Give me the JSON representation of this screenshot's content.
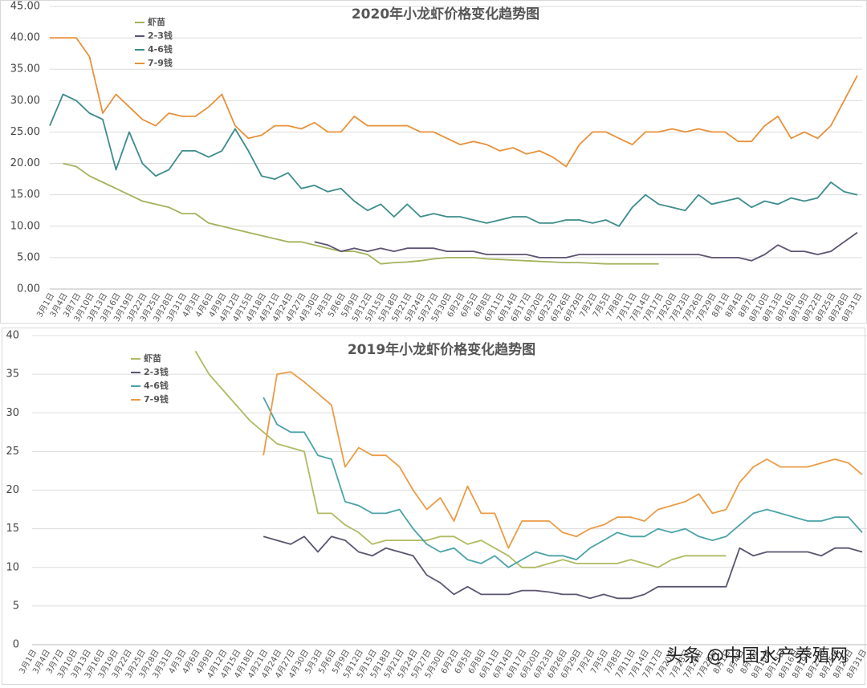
{
  "chart_data": [
    {
      "type": "line",
      "title": "2020年小龙虾价格变化趋势图",
      "grid": true,
      "legend": "upper left",
      "categories": [
        "3月1日",
        "3月4日",
        "3月7日",
        "3月10日",
        "3月13日",
        "3月16日",
        "3月19日",
        "3月22日",
        "3月25日",
        "3月28日",
        "3月31日",
        "4月3日",
        "4月6日",
        "4月9日",
        "4月12日",
        "4月15日",
        "4月18日",
        "4月21日",
        "4月24日",
        "4月27日",
        "4月30日",
        "5月3日",
        "5月6日",
        "5月9日",
        "5月12日",
        "5月15日",
        "5月18日",
        "5月21日",
        "5月24日",
        "5月27日",
        "5月30日",
        "6月2日",
        "6月5日",
        "6月8日",
        "6月11日",
        "6月14日",
        "6月17日",
        "6月20日",
        "6月23日",
        "6月26日",
        "6月29日",
        "7月2日",
        "7月5日",
        "7月8日",
        "7月11日",
        "7月14日",
        "7月17日",
        "7月20日",
        "7月23日",
        "7月26日",
        "7月29日",
        "8月1日",
        "8月4日",
        "8月7日",
        "8月10日",
        "8月13日",
        "8月16日",
        "8月19日",
        "8月22日",
        "8月25日",
        "8月28日",
        "8月31日"
      ],
      "ylim": [
        0,
        45
      ],
      "yticks": [
        {
          "value": 0,
          "label": "0.00"
        },
        {
          "value": 5,
          "label": "5.00"
        },
        {
          "value": 10,
          "label": "10.00"
        },
        {
          "value": 15,
          "label": "15.00"
        },
        {
          "value": 20,
          "label": "20.00"
        },
        {
          "value": 25,
          "label": "25.00"
        },
        {
          "value": 30,
          "label": "30.00"
        },
        {
          "value": 35,
          "label": "35.00"
        },
        {
          "value": 40,
          "label": "40.00"
        },
        {
          "value": 45,
          "label": "45.00"
        }
      ],
      "series": [
        {
          "name": "虾苗",
          "color": "#a3b35c",
          "values": [
            null,
            20,
            19.5,
            18,
            17,
            16,
            15,
            14,
            13.5,
            13,
            12,
            12,
            10.5,
            10,
            9.5,
            9,
            8.5,
            8,
            7.5,
            7.5,
            7,
            6.5,
            6,
            6,
            5.5,
            4,
            4.2,
            4.3,
            4.5,
            4.8,
            5,
            5,
            5,
            4.8,
            4.7,
            4.6,
            4.5,
            4.4,
            4.3,
            4.2,
            4.2,
            4.1,
            4,
            4,
            4,
            4,
            4,
            null,
            null,
            null,
            null,
            null,
            null,
            null,
            null,
            null,
            null,
            null,
            null,
            null,
            null,
            null
          ]
        },
        {
          "name": "2-3钱",
          "color": "#5d5272",
          "values": [
            null,
            null,
            null,
            null,
            null,
            null,
            null,
            null,
            null,
            null,
            null,
            null,
            null,
            null,
            null,
            null,
            null,
            null,
            null,
            null,
            7.5,
            7,
            6,
            6.5,
            6,
            6.5,
            6,
            6.5,
            6.5,
            6.5,
            6,
            6,
            6,
            5.5,
            5.5,
            5.5,
            5.5,
            5,
            5,
            5,
            5.5,
            5.5,
            5.5,
            5.5,
            5.5,
            5.5,
            5.5,
            5.5,
            5.5,
            5.5,
            5,
            5,
            5,
            4.5,
            5.5,
            7,
            6,
            6,
            5.5,
            6,
            7.5,
            9
          ]
        },
        {
          "name": "4-6钱",
          "color": "#3d8c8c",
          "values": [
            26,
            31,
            30,
            28,
            27,
            19,
            25,
            20,
            18,
            19,
            22,
            22,
            21,
            22,
            25.5,
            22,
            18,
            17.5,
            18.5,
            16,
            16.5,
            15.5,
            16,
            14,
            12.5,
            13.5,
            11.5,
            13.5,
            11.5,
            12,
            11.5,
            11.5,
            11,
            10.5,
            11,
            11.5,
            11.5,
            10.5,
            10.5,
            11,
            11,
            10.5,
            11,
            10,
            13,
            15,
            13.5,
            13,
            12.5,
            15,
            13.5,
            14,
            14.5,
            13,
            14,
            13.5,
            14.5,
            14,
            14.5,
            17,
            15.5,
            15
          ]
        },
        {
          "name": "7-9钱",
          "color": "#e8913a",
          "values": [
            40,
            40,
            40,
            37,
            28,
            31,
            29,
            27,
            26,
            28,
            27.5,
            27.5,
            29,
            31,
            26,
            24,
            24.5,
            26,
            26,
            25.5,
            26.5,
            25,
            25,
            27.5,
            26,
            26,
            26,
            26,
            25,
            25,
            24,
            23,
            23.5,
            23,
            22,
            22.5,
            21.5,
            22,
            21,
            19.5,
            23,
            25,
            25,
            24,
            23,
            25,
            25,
            25.5,
            25,
            25.5,
            25,
            25,
            23.5,
            23.5,
            26,
            27.5,
            24,
            25,
            24,
            26,
            30,
            34
          ]
        }
      ]
    },
    {
      "type": "line",
      "title": "2019年小龙虾价格变化趋势图",
      "grid": true,
      "legend": "upper left",
      "categories": [
        "3月1日",
        "3月4日",
        "3月7日",
        "3月10日",
        "3月13日",
        "3月16日",
        "3月19日",
        "3月22日",
        "3月25日",
        "3月28日",
        "3月31日",
        "4月3日",
        "4月6日",
        "4月9日",
        "4月12日",
        "4月15日",
        "4月18日",
        "4月21日",
        "4月24日",
        "4月27日",
        "4月30日",
        "5月3日",
        "5月6日",
        "5月9日",
        "5月12日",
        "5月15日",
        "5月18日",
        "5月21日",
        "5月24日",
        "5月27日",
        "5月30日",
        "6月2日",
        "6月5日",
        "6月8日",
        "6月11日",
        "6月14日",
        "6月17日",
        "6月20日",
        "6月23日",
        "6月26日",
        "6月29日",
        "7月2日",
        "7月5日",
        "7月8日",
        "7月11日",
        "7月14日",
        "7月17日",
        "7月20日",
        "7月23日",
        "7月26日",
        "7月29日",
        "8月1日",
        "8月4日",
        "8月7日",
        "8月10日",
        "8月13日",
        "8月16日",
        "8月19日",
        "8月22日",
        "8月25日",
        "8月28日",
        "8月31日"
      ],
      "ylim": [
        0,
        40
      ],
      "yticks": [
        0,
        5,
        10,
        15,
        20,
        25,
        30,
        35,
        40
      ],
      "series": [
        {
          "name": "虾苗",
          "color": "#b0ba62",
          "values": [
            null,
            null,
            null,
            null,
            null,
            null,
            null,
            null,
            null,
            null,
            null,
            null,
            38,
            35,
            33,
            31,
            29,
            27.5,
            26,
            25.5,
            25,
            17,
            17,
            15.5,
            14.5,
            13,
            13.5,
            13.5,
            13.5,
            13.5,
            14,
            14,
            13,
            13.5,
            12.5,
            11.5,
            10,
            10,
            10.5,
            11,
            10.5,
            10.5,
            10.5,
            10.5,
            11,
            10.5,
            10,
            11,
            11.5,
            11.5,
            11.5,
            11.5,
            null,
            null,
            null,
            null,
            null,
            null,
            null,
            null,
            null,
            null
          ]
        },
        {
          "name": "2-3钱",
          "color": "#5c5470",
          "values": [
            null,
            null,
            null,
            null,
            null,
            null,
            null,
            null,
            null,
            null,
            null,
            null,
            null,
            null,
            null,
            null,
            null,
            14,
            13.5,
            13,
            14,
            12,
            14,
            13.5,
            12,
            11.5,
            12.5,
            12,
            11.5,
            9,
            8,
            6.5,
            7.5,
            6.5,
            6.5,
            6.5,
            7,
            7,
            6.8,
            6.5,
            6.5,
            6,
            6.5,
            6,
            6,
            6.5,
            7.5,
            7.5,
            7.5,
            7.5,
            7.5,
            7.5,
            12.5,
            11.5,
            12,
            12,
            12,
            12,
            11.5,
            12.5,
            12.5,
            12
          ]
        },
        {
          "name": "4-6钱",
          "color": "#4aa3a8",
          "values": [
            null,
            null,
            null,
            null,
            null,
            null,
            null,
            null,
            null,
            null,
            null,
            null,
            null,
            null,
            null,
            null,
            null,
            32,
            28.5,
            27.5,
            27.5,
            24.5,
            24,
            18.5,
            18,
            17,
            17,
            17.5,
            15,
            13,
            12,
            12.5,
            11,
            10.5,
            11.5,
            10,
            11,
            12,
            11.5,
            11.5,
            11,
            12.5,
            13.5,
            14.5,
            14,
            14,
            15,
            14.5,
            15,
            14,
            13.5,
            14,
            15.5,
            17,
            17.5,
            17,
            16.5,
            16,
            16,
            16.5,
            16.5,
            14.5
          ]
        },
        {
          "name": "7-9钱",
          "color": "#eb9b45",
          "values": [
            null,
            null,
            null,
            null,
            null,
            null,
            null,
            null,
            null,
            null,
            null,
            null,
            null,
            null,
            null,
            null,
            null,
            24.5,
            35,
            35.3,
            34,
            32.5,
            31,
            23,
            25.5,
            24.5,
            24.5,
            23,
            20,
            17.5,
            19,
            16,
            20.5,
            17,
            17,
            12.5,
            16,
            16,
            16,
            14.5,
            14,
            15,
            15.5,
            16.5,
            16.5,
            16,
            17.5,
            18,
            18.5,
            19.5,
            17,
            17.5,
            21,
            23,
            24,
            23,
            23,
            23,
            23.5,
            24,
            23.5,
            22
          ]
        }
      ]
    }
  ],
  "watermark": "头条 @中国水产养殖网"
}
